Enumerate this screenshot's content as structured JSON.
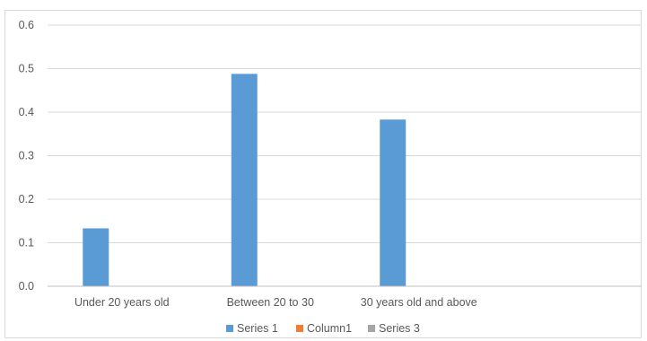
{
  "chart_data": {
    "type": "bar",
    "title": "",
    "xlabel": "",
    "ylabel": "",
    "categories": [
      "Under 20 years old",
      "Between 20 to 30",
      "30 years old and above",
      ""
    ],
    "ylim": [
      0,
      0.6
    ],
    "yticks": [
      "0.0",
      "0.1",
      "0.2",
      "0.3",
      "0.4",
      "0.5",
      "0.6"
    ],
    "grid": true,
    "legend_position": "bottom",
    "series": [
      {
        "name": "Series 1",
        "color": "#5b9bd5",
        "values": [
          0.133,
          0.488,
          0.383,
          null
        ]
      },
      {
        "name": "Column1",
        "color": "#ed7d31",
        "values": [
          null,
          null,
          null,
          null
        ]
      },
      {
        "name": "Series 3",
        "color": "#a5a5a5",
        "values": [
          null,
          null,
          null,
          null
        ]
      }
    ]
  }
}
